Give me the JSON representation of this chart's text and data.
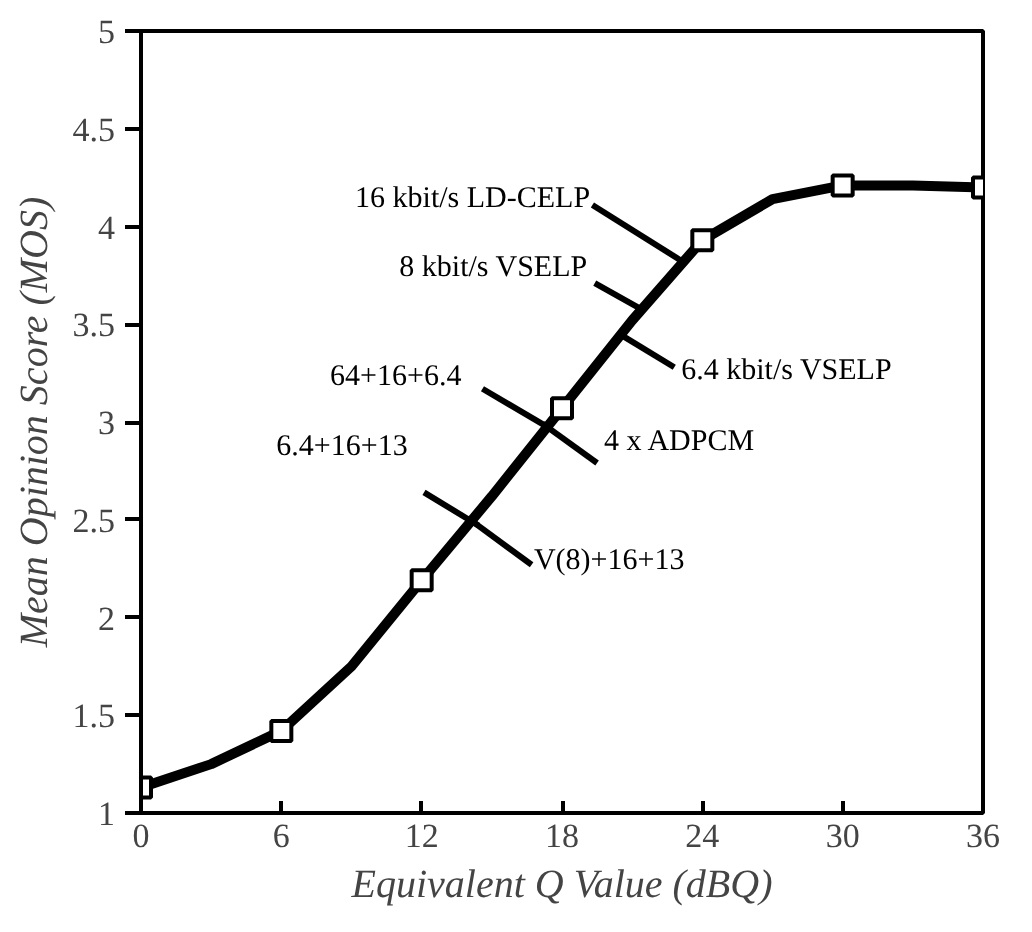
{
  "chart_data": {
    "type": "scatter",
    "xlabel": "Equivalent Q Value (dBQ)",
    "ylabel": "Mean Opinion Score (MOS)",
    "x": [
      0,
      6,
      12,
      18,
      24,
      30,
      36
    ],
    "series": [
      {
        "type": "line",
        "marker": "none",
        "color": "#000000",
        "x": [
          0,
          3,
          6,
          9,
          12,
          15,
          18,
          21,
          24,
          27,
          30,
          33,
          36
        ],
        "values": [
          1.13,
          1.25,
          1.42,
          1.75,
          2.19,
          2.62,
          3.07,
          3.52,
          3.93,
          4.14,
          4.21,
          4.21,
          4.2
        ]
      },
      {
        "color": "#000000",
        "values": [
          1.13,
          1.42,
          2.19,
          3.07,
          3.93,
          4.21,
          4.2
        ]
      }
    ],
    "xlim": [
      0,
      36
    ],
    "ylim": [
      1,
      5
    ],
    "xticks": [
      0,
      6,
      12,
      18,
      24,
      30,
      36
    ],
    "yticks": [
      1,
      1.5,
      2,
      2.5,
      3,
      3.5,
      4,
      4.5,
      5
    ],
    "marker": "square",
    "line_style": "solid",
    "grid": false,
    "annotations": [
      {
        "text": "16 kbit/s LD-CELP",
        "x": 22.9,
        "y": 3.84
      },
      {
        "text": "8 kbit/s VSELP",
        "x": 21.2,
        "y": 3.59
      },
      {
        "text": "6.4 kbit/s VSELP",
        "x": 20.6,
        "y": 3.44
      },
      {
        "text": "64+16+6.4",
        "x": 17.3,
        "y": 2.98
      },
      {
        "text": "4 x ADPCM",
        "x": 17.3,
        "y": 2.98
      },
      {
        "text": "6.4+16+13",
        "x": 14.3,
        "y": 2.48
      },
      {
        "text": "V(8)+16+13",
        "x": 14.3,
        "y": 2.48
      }
    ]
  }
}
